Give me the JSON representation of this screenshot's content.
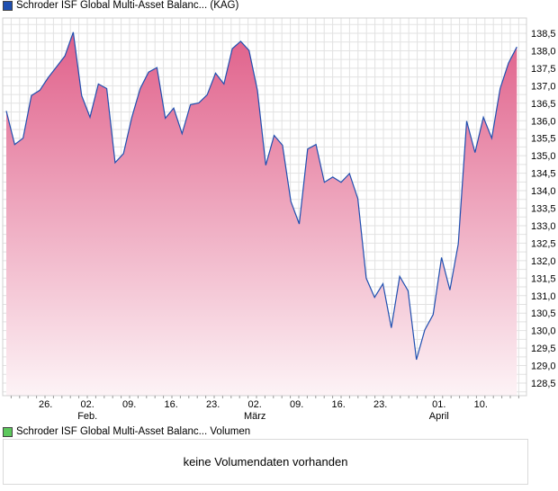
{
  "legend_main": {
    "label": "Schroder ISF Global Multi-Asset Balanc... (KAG)",
    "color": "#1f4fb0"
  },
  "legend_volume": {
    "label": "Schroder ISF Global Multi-Asset Balanc... Volumen",
    "color": "#5cc85c"
  },
  "volume_message": "keine Volumendaten vorhanden",
  "chart_data": {
    "type": "area",
    "title": "Schroder ISF Global Multi-Asset Balanc... (KAG)",
    "ylim": [
      128.2,
      139.0
    ],
    "y_ticks": [
      "138,5",
      "138,0",
      "137,5",
      "137,0",
      "136,5",
      "136,0",
      "135,5",
      "135,0",
      "134,5",
      "134,0",
      "133,5",
      "133,0",
      "132,5",
      "132,0",
      "131,5",
      "131,0",
      "130,5",
      "130,0",
      "129,5",
      "129,0",
      "128,5"
    ],
    "y_tick_values": [
      138.5,
      138,
      137.5,
      137,
      136.5,
      136,
      135.5,
      135,
      134.5,
      134,
      133.5,
      133,
      132.5,
      132,
      131.5,
      131,
      130.5,
      130,
      129.5,
      129,
      128.5
    ],
    "x_ticks": [
      {
        "label": "26.",
        "index": 5
      },
      {
        "label": "02.",
        "sub": "Feb.",
        "index": 10
      },
      {
        "label": "09.",
        "index": 15
      },
      {
        "label": "16.",
        "index": 20
      },
      {
        "label": "23.",
        "index": 25
      },
      {
        "label": "02.",
        "sub": "März",
        "index": 30
      },
      {
        "label": "09.",
        "index": 35
      },
      {
        "label": "16.",
        "index": 40
      },
      {
        "label": "23.",
        "index": 45
      },
      {
        "label": "01.",
        "sub": "April",
        "index": 52
      },
      {
        "label": "10.",
        "index": 57
      }
    ],
    "values": [
      136.28,
      135.32,
      135.5,
      136.72,
      136.87,
      137.23,
      137.54,
      137.85,
      138.53,
      136.72,
      136.1,
      137.05,
      136.92,
      134.8,
      135.06,
      136.1,
      136.92,
      137.39,
      137.52,
      136.07,
      136.36,
      135.63,
      136.46,
      136.51,
      136.74,
      137.36,
      137.05,
      138.06,
      138.27,
      138.01,
      136.87,
      134.73,
      135.58,
      135.3,
      133.69,
      133.05,
      135.19,
      135.32,
      134.24,
      134.39,
      134.24,
      134.49,
      133.77,
      131.5,
      130.95,
      131.34,
      130.08,
      131.55,
      131.14,
      129.17,
      130.02,
      130.46,
      132.09,
      131.16,
      132.48,
      135.99,
      135.09,
      136.1,
      135.5,
      136.92,
      137.65,
      138.11
    ],
    "line_color": "#1f4fb0",
    "fill_top": "#e0608a",
    "grid": true
  }
}
